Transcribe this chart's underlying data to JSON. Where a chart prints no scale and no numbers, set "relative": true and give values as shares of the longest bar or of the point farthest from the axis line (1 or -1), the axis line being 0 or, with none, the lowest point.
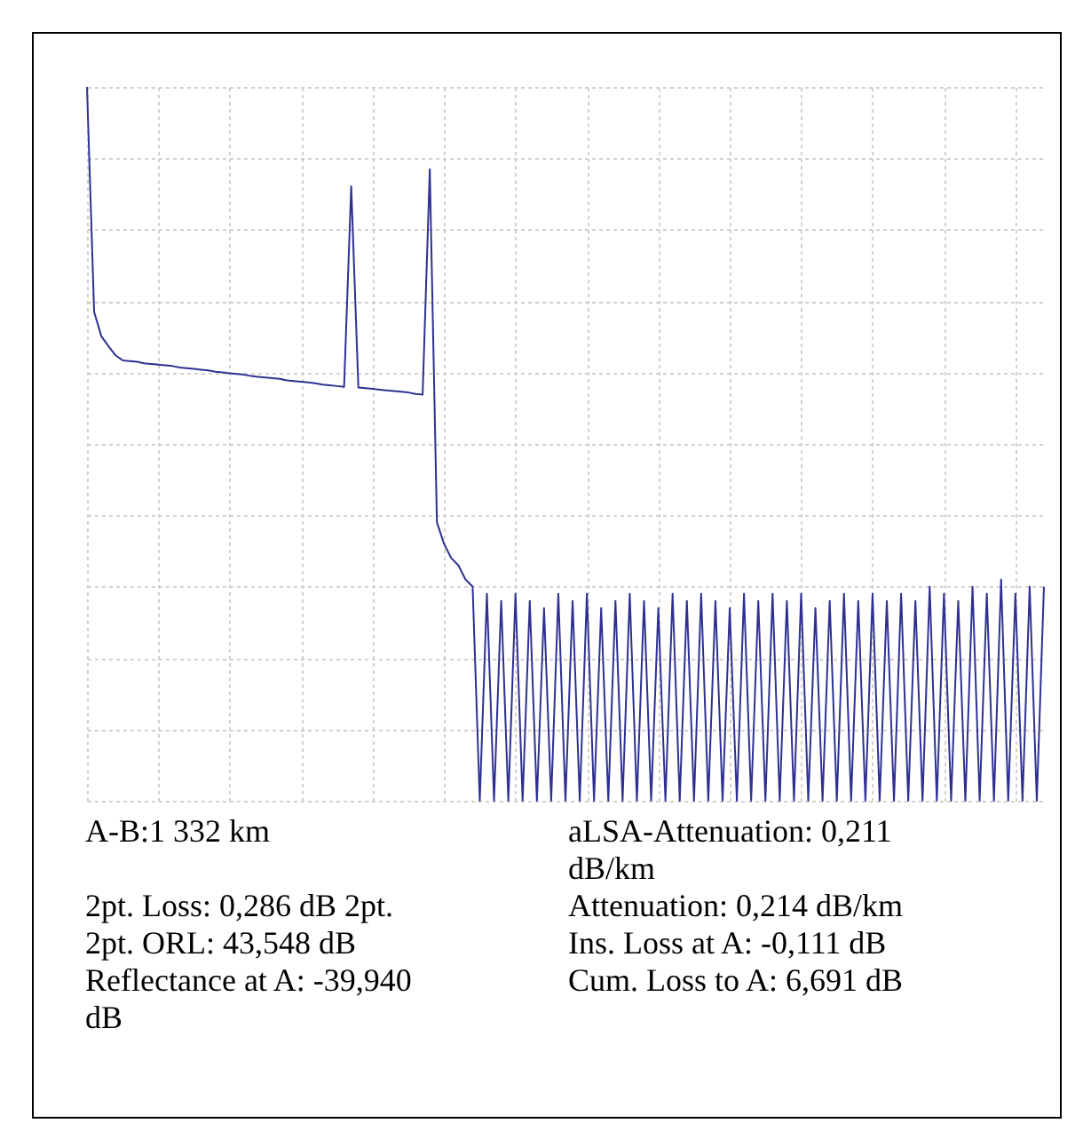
{
  "chart_data": {
    "type": "line",
    "relative": true,
    "grid": true,
    "marker": "none",
    "line_style": "solid",
    "categories": [
      null,
      null,
      null,
      null,
      null,
      null,
      null,
      null,
      null,
      null,
      null,
      null,
      null,
      null,
      null,
      null,
      null,
      null,
      null,
      null,
      null,
      null,
      null,
      null,
      null,
      null,
      null,
      null,
      null,
      null,
      null,
      null,
      null,
      null,
      null,
      null,
      null,
      null,
      null,
      null,
      null,
      null,
      null,
      null,
      null,
      null,
      null,
      null,
      null,
      null,
      null,
      null,
      null,
      null,
      null,
      null,
      null,
      null,
      null,
      null,
      null,
      null,
      null,
      null,
      null,
      null,
      null,
      null,
      null,
      null,
      null,
      null,
      null,
      null,
      null,
      null,
      null,
      null,
      null,
      null,
      null,
      null,
      null,
      null,
      null,
      null,
      null,
      null,
      null,
      null,
      null,
      null,
      null,
      null,
      null,
      null,
      null,
      null,
      null,
      null,
      null,
      null,
      null,
      null,
      null,
      null,
      null,
      null,
      null,
      null,
      null,
      null,
      null,
      null,
      null,
      null,
      null,
      null,
      null,
      null,
      null,
      null,
      null,
      null,
      null,
      null,
      null,
      null,
      null,
      null,
      null,
      null,
      null,
      null,
      null
    ],
    "series": [
      {
        "color": "#2e3192",
        "values": [
          1,
          0.685,
          0.651,
          0.637,
          0.624,
          0.617,
          0.616,
          0.615,
          0.613,
          0.612,
          0.611,
          0.61,
          0.609,
          0.607,
          0.606,
          0.605,
          0.604,
          0.603,
          0.601,
          0.6,
          0.599,
          0.598,
          0.597,
          0.595,
          0.594,
          0.593,
          0.592,
          0.591,
          0.589,
          0.588,
          0.587,
          0.586,
          0.585,
          0.583,
          0.582,
          0.581,
          0.58,
          0.861,
          0.579,
          0.578,
          0.577,
          0.576,
          0.575,
          0.574,
          0.573,
          0.572,
          0.57,
          0.569,
          0.885,
          0.39,
          0.36,
          0.34,
          0.33,
          0.31,
          0.3,
          0,
          0.29,
          0,
          0.28,
          0,
          0.29,
          0,
          0.28,
          0,
          0.27,
          0,
          0.29,
          0,
          0.28,
          0,
          0.29,
          0,
          0.27,
          0,
          0.28,
          0,
          0.29,
          0,
          0.28,
          0,
          0.27,
          0,
          0.29,
          0,
          0.28,
          0,
          0.29,
          0,
          0.28,
          0,
          0.27,
          0,
          0.29,
          0,
          0.28,
          0,
          0.29,
          0,
          0.28,
          0,
          0.29,
          0,
          0.27,
          0,
          0.28,
          0,
          0.29,
          0,
          0.28,
          0,
          0.29,
          0,
          0.28,
          0,
          0.29,
          0,
          0.28,
          0,
          0.3,
          0,
          0.29,
          0,
          0.28,
          0,
          0.3,
          0,
          0.29,
          0,
          0.31,
          0,
          0.29,
          0,
          0.3,
          0,
          0.3
        ]
      }
    ],
    "annotations": [
      "A-B:1 332 km",
      "2pt. Loss: 0,286 dB 2pt.",
      "2pt. ORL: 43,548 dB",
      "Reflectance at A: -39,940 dB",
      "aLSA-Attenuation: 0,211 dB/km",
      "Attenuation: 0,214 dB/km",
      "Ins. Loss at A: -0,111 dB",
      "Cum. Loss to A: 6,691 dB"
    ]
  }
}
